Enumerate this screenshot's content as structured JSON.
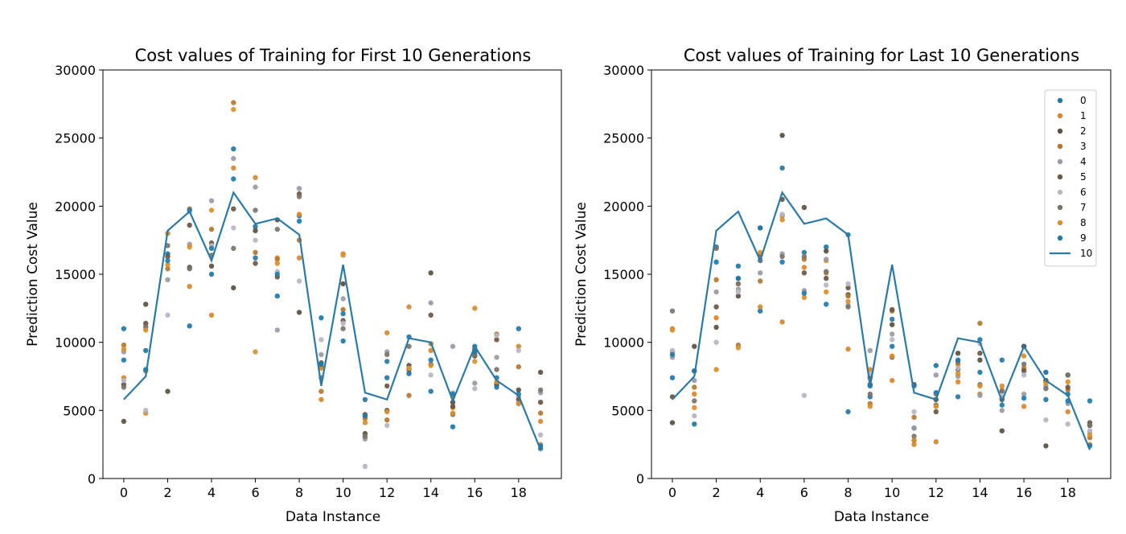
{
  "chart_data": [
    {
      "type": "scatter",
      "title": "Cost values of Training for First 10 Generations",
      "xlabel": "Data Instance",
      "ylabel": "Prediction Cost Value",
      "xlim": [
        -0.95,
        19.95
      ],
      "ylim": [
        0,
        30000
      ],
      "xticks": [
        "0",
        "2",
        "4",
        "6",
        "8",
        "10",
        "12",
        "14",
        "16",
        "18"
      ],
      "yticks": [
        "0",
        "5000",
        "10000",
        "15000",
        "20000",
        "25000",
        "30000"
      ],
      "legend": null,
      "x": [
        0,
        1,
        2,
        3,
        4,
        5,
        6,
        7,
        8,
        9,
        10,
        11,
        12,
        13,
        14,
        15,
        16,
        17,
        18,
        19
      ],
      "series": [
        {
          "values": [
            11000,
            9400,
            16500,
            11200,
            15000,
            24200,
            18500,
            13400,
            19300,
            11800,
            10100,
            5800,
            7400,
            10400,
            6400,
            3800,
            9700,
            7400,
            11000,
            2200
          ]
        },
        {
          "values": [
            7400,
            4800,
            18000,
            14100,
            12000,
            22800,
            22100,
            16200,
            16200,
            5800,
            16500,
            3000,
            10700,
            12600,
            9400,
            5200,
            12500,
            7000,
            9700,
            4200
          ]
        },
        {
          "values": [
            4200,
            12800,
            6400,
            15500,
            15600,
            14000,
            18200,
            19000,
            12200,
            8200,
            14300,
            3300,
            5000,
            8300,
            15100,
            5600,
            9000,
            6900,
            6500,
            7800
          ]
        },
        {
          "values": [
            9800,
            7900,
            15400,
            19800,
            18300,
            27600,
            16600,
            16100,
            17500,
            6400,
            12400,
            4400,
            4300,
            6100,
            9900,
            6000,
            9200,
            10600,
            8200,
            4800
          ]
        },
        {
          "values": [
            9300,
            11200,
            14600,
            17200,
            20400,
            23500,
            21400,
            10900,
            21300,
            9100,
            13200,
            2900,
            9300,
            7800,
            12900,
            9700,
            7000,
            8900,
            6000,
            6300
          ]
        },
        {
          "values": [
            6900,
            11400,
            16300,
            18600,
            17300,
            19800,
            15800,
            14800,
            20900,
            8500,
            11600,
            4700,
            6800,
            8000,
            12000,
            5300,
            9500,
            10200,
            5800,
            5600
          ]
        },
        {
          "values": [
            7200,
            5000,
            12000,
            19600,
            17100,
            18400,
            17500,
            15200,
            14500,
            10200,
            11400,
            900,
            3900,
            8100,
            7600,
            6300,
            6600,
            10500,
            9400,
            3200
          ]
        },
        {
          "values": [
            6700,
            11100,
            17100,
            15400,
            16400,
            16900,
            19700,
            18300,
            20700,
            7400,
            11000,
            3100,
            9100,
            9700,
            8400,
            4700,
            9100,
            8000,
            5500,
            6500
          ]
        },
        {
          "values": [
            9500,
            10900,
            15700,
            17000,
            19700,
            27100,
            9300,
            15800,
            19400,
            8100,
            16400,
            4100,
            4900,
            8100,
            8300,
            4800,
            8600,
            7100,
            5500,
            2500
          ]
        },
        {
          "values": [
            8700,
            8000,
            16000,
            19700,
            16900,
            22000,
            16200,
            15000,
            18900,
            8400,
            12100,
            4600,
            8600,
            7700,
            8700,
            6200,
            9300,
            6700,
            6200,
            2400
          ]
        },
        {
          "values": [
            5800,
            7500,
            18200,
            19600,
            16000,
            21000,
            18700,
            19100,
            17900,
            6800,
            15700,
            6300,
            5800,
            10300,
            10000,
            5700,
            9700,
            7200,
            6100,
            2100
          ],
          "line": true
        }
      ]
    },
    {
      "type": "scatter",
      "title": "Cost values of Training for Last 10 Generations",
      "xlabel": "Data Instance",
      "ylabel": "Prediction Cost Value",
      "xlim": [
        -0.95,
        19.95
      ],
      "ylim": [
        0,
        30000
      ],
      "xticks": [
        "0",
        "2",
        "4",
        "6",
        "8",
        "10",
        "12",
        "14",
        "16",
        "18"
      ],
      "yticks": [
        "0",
        "5000",
        "10000",
        "15000",
        "20000",
        "25000",
        "30000"
      ],
      "legend": {
        "placement": "upper right",
        "entries": [
          "0",
          "1",
          "2",
          "3",
          "4",
          "5",
          "6",
          "7",
          "8",
          "9",
          "10"
        ]
      },
      "x": [
        0,
        1,
        2,
        3,
        4,
        5,
        6,
        7,
        8,
        9,
        10,
        11,
        12,
        13,
        14,
        15,
        16,
        17,
        18,
        19
      ],
      "series": [
        {
          "name": "0",
          "values": [
            7400,
            4000,
            17000,
            15600,
            12300,
            22800,
            16600,
            17000,
            4900,
            6000,
            9700,
            3700,
            8300,
            6000,
            10200,
            8700,
            9700,
            5800,
            6200,
            5700
          ]
        },
        {
          "name": "1",
          "values": [
            11000,
            6200,
            11800,
            14300,
            12600,
            11500,
            15500,
            16000,
            9500,
            8000,
            7200,
            2500,
            2700,
            7100,
            6200,
            6500,
            5300,
            7800,
            4900,
            2500
          ]
        },
        {
          "name": "2",
          "values": [
            4100,
            9700,
            11100,
            13400,
            18400,
            25200,
            19900,
            16700,
            13500,
            6900,
            11300,
            6900,
            5800,
            9200,
            8700,
            3500,
            9700,
            2400,
            7600,
            3900
          ]
        },
        {
          "name": "3",
          "values": [
            9300,
            6700,
            14600,
            9800,
            14500,
            19300,
            16100,
            15100,
            13400,
            5500,
            12300,
            4500,
            6200,
            8400,
            11400,
            5900,
            8100,
            7200,
            6500,
            3000
          ]
        },
        {
          "name": "4",
          "values": [
            8900,
            7200,
            13700,
            13900,
            15100,
            16500,
            13800,
            16100,
            12700,
            9400,
            10600,
            3700,
            7600,
            7500,
            6100,
            5000,
            6200,
            6800,
            5500,
            3400
          ]
        },
        {
          "name": "5",
          "values": [
            6000,
            7900,
            12600,
            14700,
            16400,
            20500,
            15100,
            14700,
            14000,
            7400,
            12400,
            2800,
            4900,
            8000,
            9200,
            5800,
            7900,
            7200,
            6700,
            4100
          ]
        },
        {
          "name": "6",
          "values": [
            9400,
            4600,
            10000,
            13700,
            16100,
            19400,
            6100,
            14200,
            14300,
            7700,
            10200,
            4900,
            6300,
            8100,
            9900,
            6000,
            7600,
            4300,
            4000,
            3500
          ]
        },
        {
          "name": "7",
          "values": [
            12300,
            5700,
            16900,
            14300,
            16000,
            16300,
            16300,
            15200,
            12600,
            6200,
            8900,
            3100,
            5400,
            8600,
            6900,
            6400,
            8400,
            6600,
            7600,
            3900
          ]
        },
        {
          "name": "8",
          "values": [
            10900,
            5200,
            8000,
            9600,
            16600,
            19000,
            13300,
            13700,
            13000,
            5300,
            9000,
            2800,
            5300,
            7700,
            6800,
            6800,
            9000,
            7000,
            7100,
            3200
          ]
        },
        {
          "name": "9",
          "values": [
            9100,
            7900,
            15900,
            14700,
            18400,
            15900,
            13600,
            12800,
            17900,
            6800,
            11700,
            6800,
            6300,
            8700,
            7800,
            5400,
            5900,
            7800,
            5700,
            2400
          ]
        },
        {
          "name": "10",
          "values": [
            5800,
            7500,
            18200,
            19600,
            16000,
            21000,
            18700,
            19100,
            17900,
            6800,
            15700,
            6300,
            5800,
            10300,
            10000,
            5700,
            9700,
            7200,
            6100,
            2100
          ],
          "line": true
        }
      ]
    }
  ],
  "colors": {
    "series": [
      "#1f77a6",
      "#d7882c",
      "#5b4e3e",
      "#b5772e",
      "#9a9aa8",
      "#6b5643",
      "#b8b5c2",
      "#7a7368",
      "#d98f2a",
      "#1e7bab",
      "#2a7aa8"
    ],
    "line": "#2a7aa8",
    "axes": "#000000"
  }
}
